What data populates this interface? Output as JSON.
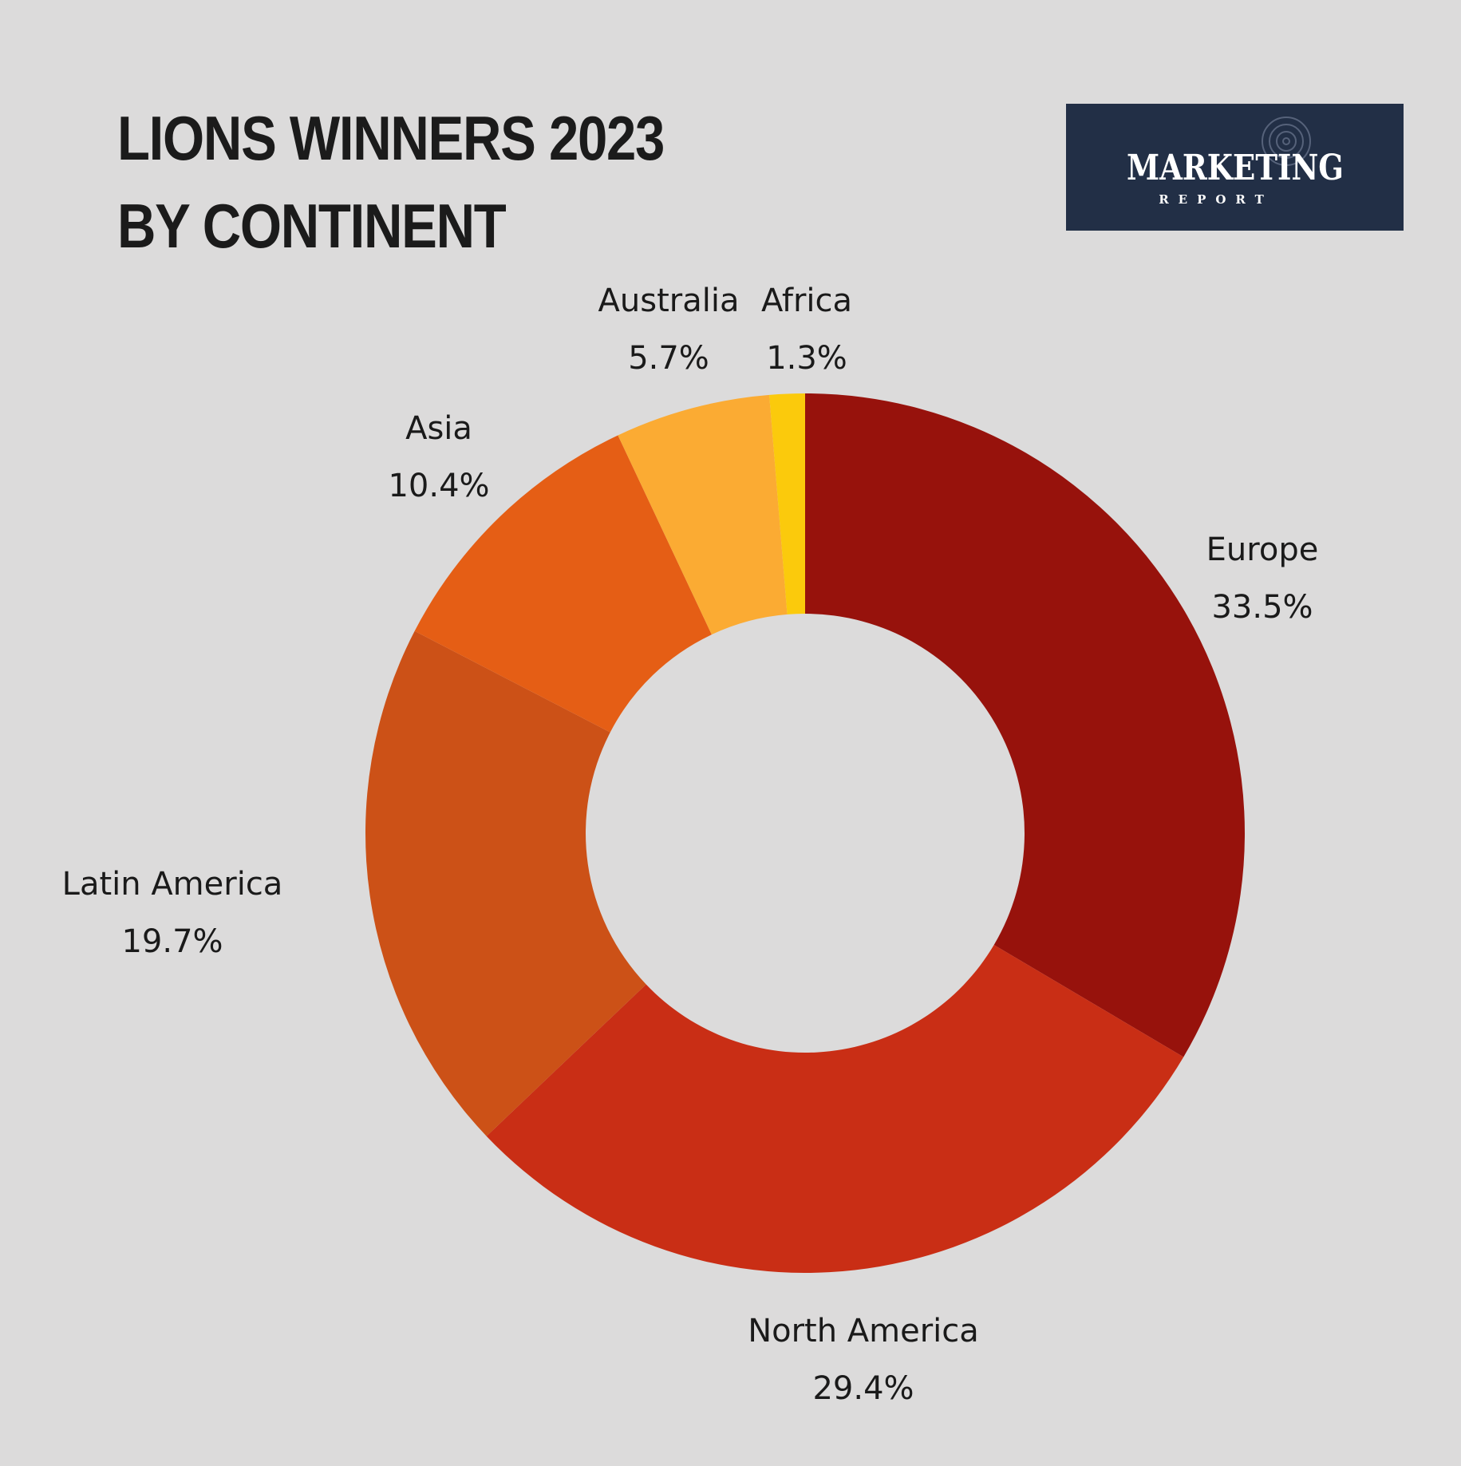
{
  "title": {
    "line1": "LIONS WINNERS 2023",
    "line2": "BY CONTINENT"
  },
  "logo": {
    "main": "MARKETING",
    "sub": "REPORT"
  },
  "colors": {
    "background": "#dcdbdb",
    "logo_bg": "#222f46"
  },
  "chart_data": {
    "type": "pie",
    "variant": "donut",
    "title": "LIONS WINNERS 2023 BY CONTINENT",
    "start": "top, clockwise",
    "slices": [
      {
        "label": "Europe",
        "value": 33.5,
        "value_label": "33.5%",
        "color": "#97120c"
      },
      {
        "label": "North America",
        "value": 29.4,
        "value_label": "29.4%",
        "color": "#c92e15"
      },
      {
        "label": "Latin America",
        "value": 19.7,
        "value_label": "19.7%",
        "color": "#cc5117"
      },
      {
        "label": "Asia",
        "value": 10.4,
        "value_label": "10.4%",
        "color": "#e55e15"
      },
      {
        "label": "Australia",
        "value": 5.7,
        "value_label": "5.7%",
        "color": "#fbab33"
      },
      {
        "label": "Africa",
        "value": 1.3,
        "value_label": "1.3%",
        "color": "#fbca0c"
      }
    ]
  }
}
